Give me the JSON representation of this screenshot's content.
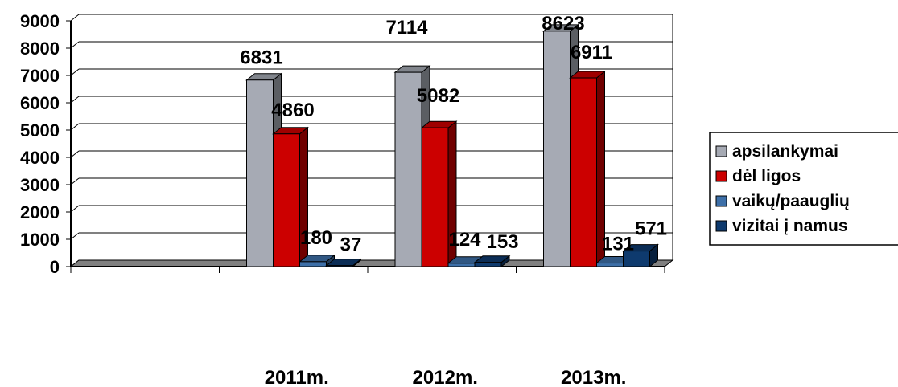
{
  "chart_data": {
    "type": "bar",
    "title": "",
    "xlabel": "",
    "ylabel": "",
    "categories": [
      "",
      "2011m.",
      "2012m.",
      "2013m."
    ],
    "ylim": [
      0,
      9000
    ],
    "yticks": [
      0,
      1000,
      2000,
      3000,
      4000,
      5000,
      6000,
      7000,
      8000,
      9000
    ],
    "grid": true,
    "legend_position": "right",
    "series": [
      {
        "name": "apsilankymai",
        "color": "#a6aab4",
        "values": [
          null,
          6831,
          7114,
          8623
        ]
      },
      {
        "name": "dėl ligos",
        "color": "#cc0000",
        "values": [
          null,
          4860,
          5082,
          6911
        ]
      },
      {
        "name": "vaikų/paauglių",
        "color": "#3d6fa8",
        "values": [
          null,
          180,
          124,
          131
        ]
      },
      {
        "name": "vizitai į namus",
        "color": "#0e3a6e",
        "values": [
          null,
          37,
          153,
          571
        ]
      }
    ]
  }
}
